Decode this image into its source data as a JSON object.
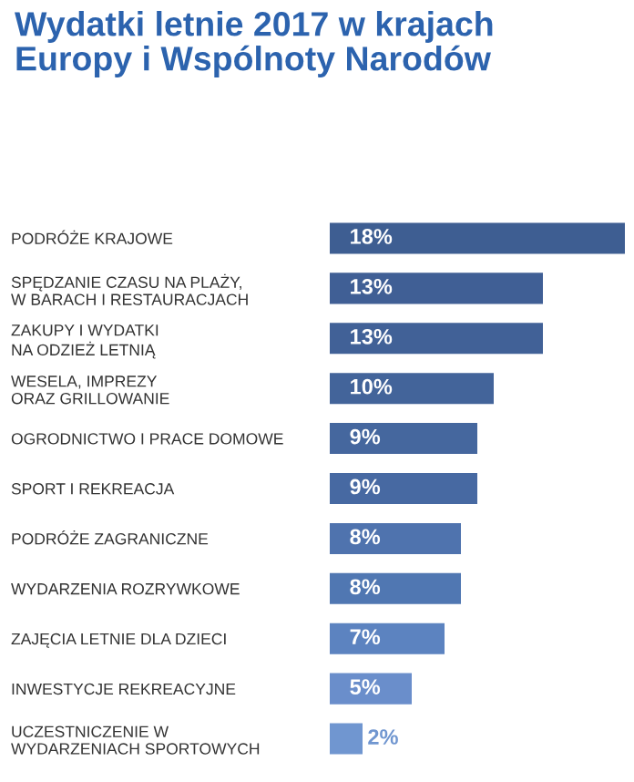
{
  "chart_data": {
    "type": "bar",
    "orientation": "horizontal",
    "title": "Wydatki letnie 2017 w krajach\nEuropy i Wspólnoty Narodów",
    "categories": [
      "PODRÓŻE KRAJOWE",
      "SPĘDZANIE CZASU NA PLAŻY,\nW BARACH I RESTAURACJACH",
      "ZAKUPY I WYDATKI\nNA ODZIEŻ LETNIĄ",
      "WESELA, IMPREZY\nORAZ GRILLOWANIE",
      "OGRODNICTWO I PRACE DOMOWE",
      "SPORT I REKREACJA",
      "PODRÓŻE ZAGRANICZNE",
      "WYDARZENIA ROZRYWKOWE",
      "ZAJĘCIA LETNIE DLA DZIECI",
      "INWESTYCJE REKREACYJNE",
      "UCZESTNICZENIE W\nWYDARZENIACH SPORTOWYCH"
    ],
    "values": [
      18,
      13,
      13,
      10,
      9,
      9,
      8,
      8,
      7,
      5,
      2
    ],
    "value_labels": [
      "18%",
      "13%",
      "13%",
      "10%",
      "9%",
      "9%",
      "8%",
      "8%",
      "7%",
      "5%",
      "2%"
    ],
    "colors": [
      "#3e5e92",
      "#405f95",
      "#416197",
      "#43649a",
      "#45679e",
      "#4769a2",
      "#4f73ae",
      "#5077b2",
      "#5c83c0",
      "#6a8ecb",
      "#7096d0"
    ],
    "grid": false,
    "legend": false
  }
}
